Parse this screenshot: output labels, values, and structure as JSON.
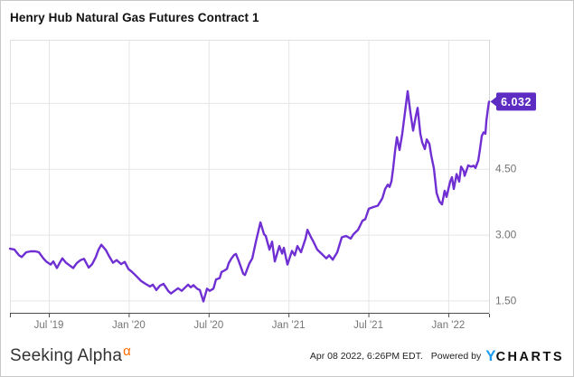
{
  "header": {
    "title": "Henry Hub Natural Gas Futures Contract 1"
  },
  "price_badge": {
    "value": "6.032",
    "color": "#5d2cc2",
    "text_color": "#ffffff"
  },
  "footer": {
    "brand": {
      "name": "Seeking Alpha",
      "alpha_symbol": "α",
      "alpha_color": "#ff6a00"
    },
    "timestamp": "Apr 08 2022, 6:26PM EDT.",
    "powered_by": "Powered by",
    "ycharts": {
      "y": "Y",
      "rest": "CHARTS",
      "y_color": "#1e9bf0"
    }
  },
  "chart_data": {
    "type": "line",
    "title": "Henry Hub Natural Gas Futures Contract 1",
    "x_unit": "months since April 2019 (0 = Apr 2019, data ends Apr 08 2022)",
    "xlim": [
      0.08,
      36.06
    ],
    "ylim": [
      1.22,
      7.44
    ],
    "grid": true,
    "legend": "none",
    "y_axis_side": "right",
    "line_color": "#6f2fd3",
    "grid_color": "#e5e5e5",
    "axis_color": "#4d4d4d",
    "label_color": "#757575",
    "last_value": 6.032,
    "x_ticks": [
      {
        "m": 3,
        "label": "Jul '19"
      },
      {
        "m": 9,
        "label": "Jan '20"
      },
      {
        "m": 15,
        "label": "Jul '20"
      },
      {
        "m": 21,
        "label": "Jan '21"
      },
      {
        "m": 27,
        "label": "Jul '21"
      },
      {
        "m": 33,
        "label": "Jan '22"
      }
    ],
    "y_ticks": [
      {
        "v": 1.5,
        "label": "1.50"
      },
      {
        "v": 3.0,
        "label": "3.00"
      },
      {
        "v": 4.5,
        "label": "4.50"
      }
    ],
    "y_gridlines": [
      1.5,
      3.0,
      4.5,
      6.0
    ],
    "series": [
      {
        "name": "Henry Hub Natural Gas Futures Contract 1",
        "points": [
          [
            0.08,
            2.68
          ],
          [
            0.42,
            2.66
          ],
          [
            0.76,
            2.53
          ],
          [
            0.96,
            2.49
          ],
          [
            1.3,
            2.6
          ],
          [
            1.64,
            2.62
          ],
          [
            1.98,
            2.62
          ],
          [
            2.25,
            2.6
          ],
          [
            2.59,
            2.46
          ],
          [
            2.8,
            2.39
          ],
          [
            3.14,
            2.32
          ],
          [
            3.34,
            2.39
          ],
          [
            3.61,
            2.24
          ],
          [
            3.82,
            2.36
          ],
          [
            4.02,
            2.46
          ],
          [
            4.29,
            2.36
          ],
          [
            4.56,
            2.3
          ],
          [
            4.83,
            2.24
          ],
          [
            5.1,
            2.35
          ],
          [
            5.38,
            2.42
          ],
          [
            5.65,
            2.45
          ],
          [
            5.99,
            2.25
          ],
          [
            6.26,
            2.33
          ],
          [
            6.53,
            2.49
          ],
          [
            6.73,
            2.66
          ],
          [
            6.94,
            2.77
          ],
          [
            7.28,
            2.65
          ],
          [
            7.55,
            2.5
          ],
          [
            7.82,
            2.36
          ],
          [
            8.09,
            2.42
          ],
          [
            8.43,
            2.33
          ],
          [
            8.7,
            2.38
          ],
          [
            8.97,
            2.22
          ],
          [
            9.25,
            2.15
          ],
          [
            9.59,
            2.05
          ],
          [
            9.92,
            1.95
          ],
          [
            10.26,
            1.88
          ],
          [
            10.6,
            1.82
          ],
          [
            10.81,
            1.86
          ],
          [
            11.08,
            1.74
          ],
          [
            11.35,
            1.84
          ],
          [
            11.62,
            1.88
          ],
          [
            11.96,
            1.72
          ],
          [
            12.17,
            1.66
          ],
          [
            12.44,
            1.72
          ],
          [
            12.71,
            1.78
          ],
          [
            12.98,
            1.72
          ],
          [
            13.25,
            1.8
          ],
          [
            13.46,
            1.86
          ],
          [
            13.66,
            1.8
          ],
          [
            13.86,
            1.85
          ],
          [
            14.13,
            1.77
          ],
          [
            14.34,
            1.74
          ],
          [
            14.61,
            1.48
          ],
          [
            14.88,
            1.77
          ],
          [
            15.08,
            1.72
          ],
          [
            15.36,
            1.77
          ],
          [
            15.56,
            1.98
          ],
          [
            15.83,
            2.01
          ],
          [
            15.97,
            2.15
          ],
          [
            16.17,
            2.18
          ],
          [
            16.38,
            2.22
          ],
          [
            16.51,
            2.35
          ],
          [
            16.72,
            2.46
          ],
          [
            16.92,
            2.54
          ],
          [
            17.05,
            2.56
          ],
          [
            17.26,
            2.4
          ],
          [
            17.39,
            2.29
          ],
          [
            17.6,
            2.11
          ],
          [
            17.73,
            2.08
          ],
          [
            17.94,
            2.25
          ],
          [
            18.07,
            2.35
          ],
          [
            18.28,
            2.46
          ],
          [
            18.55,
            2.84
          ],
          [
            18.89,
            3.28
          ],
          [
            19.16,
            3.01
          ],
          [
            19.29,
            2.97
          ],
          [
            19.57,
            2.66
          ],
          [
            19.77,
            2.84
          ],
          [
            19.97,
            2.39
          ],
          [
            20.31,
            2.74
          ],
          [
            20.52,
            2.57
          ],
          [
            20.65,
            2.7
          ],
          [
            20.92,
            2.32
          ],
          [
            21.26,
            2.63
          ],
          [
            21.47,
            2.53
          ],
          [
            21.67,
            2.74
          ],
          [
            21.94,
            2.6
          ],
          [
            22.28,
            2.91
          ],
          [
            22.42,
            3.11
          ],
          [
            22.69,
            2.94
          ],
          [
            22.82,
            2.87
          ],
          [
            23.16,
            2.66
          ],
          [
            23.5,
            2.56
          ],
          [
            23.84,
            2.46
          ],
          [
            24.05,
            2.53
          ],
          [
            24.32,
            2.43
          ],
          [
            24.66,
            2.6
          ],
          [
            25.0,
            2.94
          ],
          [
            25.33,
            2.97
          ],
          [
            25.67,
            2.91
          ],
          [
            25.88,
            3.01
          ],
          [
            26.22,
            3.11
          ],
          [
            26.56,
            3.32
          ],
          [
            26.76,
            3.35
          ],
          [
            27.03,
            3.59
          ],
          [
            27.37,
            3.63
          ],
          [
            27.71,
            3.66
          ],
          [
            28.05,
            3.83
          ],
          [
            28.25,
            4.04
          ],
          [
            28.46,
            4.14
          ],
          [
            28.59,
            4.09
          ],
          [
            28.73,
            4.21
          ],
          [
            28.86,
            4.5
          ],
          [
            29.0,
            4.9
          ],
          [
            29.14,
            5.22
          ],
          [
            29.34,
            4.93
          ],
          [
            29.54,
            5.3
          ],
          [
            29.75,
            5.8
          ],
          [
            29.95,
            6.27
          ],
          [
            30.15,
            5.8
          ],
          [
            30.36,
            5.37
          ],
          [
            30.56,
            5.7
          ],
          [
            30.7,
            5.89
          ],
          [
            30.9,
            5.3
          ],
          [
            31.04,
            5.1
          ],
          [
            31.24,
            4.95
          ],
          [
            31.38,
            5.17
          ],
          [
            31.58,
            5.07
          ],
          [
            31.72,
            4.8
          ],
          [
            31.92,
            4.51
          ],
          [
            32.12,
            3.95
          ],
          [
            32.33,
            3.76
          ],
          [
            32.53,
            3.69
          ],
          [
            32.73,
            4.0
          ],
          [
            32.87,
            3.86
          ],
          [
            33.14,
            4.21
          ],
          [
            33.28,
            4.31
          ],
          [
            33.41,
            4.04
          ],
          [
            33.62,
            4.38
          ],
          [
            33.82,
            4.21
          ],
          [
            33.96,
            4.55
          ],
          [
            34.16,
            4.45
          ],
          [
            34.23,
            4.34
          ],
          [
            34.5,
            4.58
          ],
          [
            34.7,
            4.55
          ],
          [
            34.91,
            4.57
          ],
          [
            35.04,
            4.52
          ],
          [
            35.25,
            4.69
          ],
          [
            35.38,
            4.95
          ],
          [
            35.52,
            5.25
          ],
          [
            35.65,
            5.33
          ],
          [
            35.79,
            5.3
          ],
          [
            35.86,
            5.6
          ],
          [
            35.99,
            5.9
          ],
          [
            36.06,
            6.032
          ]
        ]
      }
    ]
  }
}
